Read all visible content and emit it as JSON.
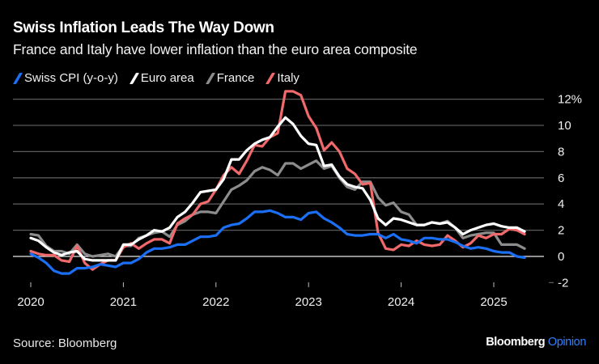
{
  "title": "Swiss Inflation Leads The Way Down",
  "subtitle": "France and Italy have lower inflation than the euro area composite",
  "source": "Source: Bloomberg",
  "brand": {
    "name": "Bloomberg",
    "section": "Opinion"
  },
  "chart_data": {
    "type": "line",
    "title": "Swiss Inflation Leads The Way Down",
    "subtitle": "France and Italy have lower inflation than the euro area composite",
    "xlabel": "",
    "ylabel": "",
    "x_start": "2020-01",
    "x_end": "2025-05",
    "x_frequency": "monthly",
    "xticks": [
      "2020",
      "2021",
      "2022",
      "2023",
      "2024",
      "2025"
    ],
    "yticks": [
      "12%",
      "10",
      "8",
      "6",
      "4",
      "2",
      "0",
      "-2"
    ],
    "ytick_values": [
      12,
      10,
      8,
      6,
      4,
      2,
      0,
      -2
    ],
    "ylim": [
      -2,
      12
    ],
    "grid": true,
    "legend_position": "top-left",
    "series": [
      {
        "name": "Swiss CPI (y-o-y)",
        "color": "#1a6ff5",
        "values": [
          0.2,
          -0.1,
          -0.5,
          -1.1,
          -1.3,
          -1.3,
          -0.9,
          -0.9,
          -0.8,
          -0.6,
          -0.7,
          -0.8,
          -0.5,
          -0.5,
          -0.2,
          0.3,
          0.6,
          0.6,
          0.7,
          0.9,
          0.9,
          1.2,
          1.5,
          1.5,
          1.6,
          2.2,
          2.4,
          2.5,
          2.9,
          3.4,
          3.4,
          3.5,
          3.3,
          3.0,
          3.0,
          2.8,
          3.3,
          3.4,
          2.9,
          2.6,
          2.2,
          1.7,
          1.6,
          1.6,
          1.7,
          1.7,
          1.4,
          1.7,
          1.3,
          1.2,
          1.0,
          1.4,
          1.4,
          1.3,
          1.3,
          1.1,
          0.8,
          0.6,
          0.7,
          0.6,
          0.4,
          0.3,
          0.3,
          0.0,
          -0.1
        ]
      },
      {
        "name": "Euro area",
        "color": "#ffffff",
        "values": [
          1.4,
          1.2,
          0.7,
          0.3,
          0.1,
          0.3,
          0.4,
          -0.2,
          -0.3,
          -0.3,
          -0.3,
          -0.3,
          0.9,
          0.9,
          1.3,
          1.6,
          2.0,
          1.9,
          2.2,
          3.0,
          3.4,
          4.1,
          4.9,
          5.0,
          5.1,
          5.9,
          7.4,
          7.4,
          8.1,
          8.6,
          8.9,
          9.1,
          9.9,
          10.6,
          10.1,
          9.2,
          8.6,
          8.5,
          6.9,
          7.0,
          6.1,
          5.5,
          5.3,
          5.2,
          4.3,
          2.9,
          2.4,
          2.9,
          2.8,
          2.6,
          2.4,
          2.4,
          2.6,
          2.5,
          2.6,
          2.2,
          1.7,
          2.0,
          2.2,
          2.4,
          2.5,
          2.3,
          2.2,
          2.2,
          1.9
        ]
      },
      {
        "name": "France",
        "color": "#8c8c8c",
        "values": [
          1.7,
          1.6,
          0.8,
          0.4,
          0.4,
          0.2,
          0.9,
          0.2,
          0.0,
          0.1,
          0.2,
          0.0,
          0.8,
          0.8,
          1.4,
          1.6,
          1.8,
          1.9,
          1.5,
          2.4,
          2.7,
          3.2,
          3.4,
          3.4,
          3.3,
          4.2,
          5.1,
          5.4,
          5.8,
          6.5,
          6.8,
          6.6,
          6.2,
          7.1,
          7.1,
          6.7,
          7.0,
          7.3,
          6.7,
          6.9,
          6.0,
          5.3,
          5.1,
          5.7,
          5.7,
          4.5,
          3.9,
          4.1,
          3.4,
          3.2,
          2.4,
          2.4,
          2.6,
          2.5,
          2.7,
          2.2,
          1.4,
          1.6,
          1.7,
          1.8,
          1.8,
          0.9,
          0.9,
          0.9,
          0.6
        ]
      },
      {
        "name": "Italy",
        "color": "#f0696b",
        "values": [
          0.4,
          0.2,
          0.1,
          0.1,
          -0.3,
          -0.4,
          0.8,
          -0.5,
          -1.0,
          -0.6,
          -0.3,
          -0.3,
          0.7,
          1.0,
          0.6,
          1.0,
          1.3,
          1.3,
          1.0,
          2.5,
          2.9,
          3.2,
          4.0,
          4.2,
          5.1,
          6.2,
          6.8,
          6.3,
          7.3,
          8.5,
          8.4,
          9.1,
          9.4,
          12.6,
          12.6,
          12.3,
          10.7,
          9.8,
          8.1,
          8.7,
          8.0,
          6.7,
          6.3,
          5.5,
          5.6,
          1.8,
          0.6,
          0.5,
          0.9,
          0.8,
          1.2,
          0.9,
          0.8,
          0.9,
          1.6,
          1.2,
          0.7,
          1.0,
          1.6,
          1.4,
          1.7,
          1.7,
          2.1,
          2.0,
          1.7
        ]
      }
    ]
  }
}
